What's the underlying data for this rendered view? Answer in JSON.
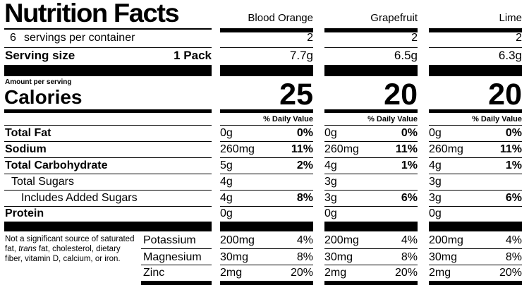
{
  "title": "Nutrition Facts",
  "servings_per_container": {
    "count": "6",
    "label": "servings per container"
  },
  "serving_size": {
    "label": "Serving size",
    "value": "1 Pack"
  },
  "amount_per_serving": "Amount per serving",
  "calories_label": "Calories",
  "daily_value_header": "% Daily Value",
  "nutrient_labels": {
    "fat": "Total Fat",
    "sodium": "Sodium",
    "carb": "Total Carbohydrate",
    "sugars": "Total Sugars",
    "added": "Includes Added Sugars",
    "protein": "Protein",
    "potassium": "Potassium",
    "magnesium": "Magnesium",
    "zinc": "Zinc"
  },
  "footnote": {
    "pre": "Not a significant source of saturated fat, ",
    "italic": "trans",
    "post": " fat, cholesterol, dietary fiber, vitamin D, calcium, or iron."
  },
  "columns": [
    {
      "name": "Blood Orange",
      "servings": "2",
      "size": "7.7g",
      "calories": "25",
      "fat": [
        "0g",
        "0%"
      ],
      "sodium": [
        "260mg",
        "11%"
      ],
      "carb": [
        "5g",
        "2%"
      ],
      "sugars": "4g",
      "added": [
        "4g",
        "8%"
      ],
      "protein": "0g",
      "potassium": [
        "200mg",
        "4%"
      ],
      "magnesium": [
        "30mg",
        "8%"
      ],
      "zinc": [
        "2mg",
        "20%"
      ]
    },
    {
      "name": "Grapefruit",
      "servings": "2",
      "size": "6.5g",
      "calories": "20",
      "fat": [
        "0g",
        "0%"
      ],
      "sodium": [
        "260mg",
        "11%"
      ],
      "carb": [
        "4g",
        "1%"
      ],
      "sugars": "3g",
      "added": [
        "3g",
        "6%"
      ],
      "protein": "0g",
      "potassium": [
        "200mg",
        "4%"
      ],
      "magnesium": [
        "30mg",
        "8%"
      ],
      "zinc": [
        "2mg",
        "20%"
      ]
    },
    {
      "name": "Lime",
      "servings": "2",
      "size": "6.3g",
      "calories": "20",
      "fat": [
        "0g",
        "0%"
      ],
      "sodium": [
        "260mg",
        "11%"
      ],
      "carb": [
        "4g",
        "1%"
      ],
      "sugars": "3g",
      "added": [
        "3g",
        "6%"
      ],
      "protein": "0g",
      "potassium": [
        "200mg",
        "4%"
      ],
      "magnesium": [
        "30mg",
        "8%"
      ],
      "zinc": [
        "2mg",
        "20%"
      ]
    }
  ]
}
